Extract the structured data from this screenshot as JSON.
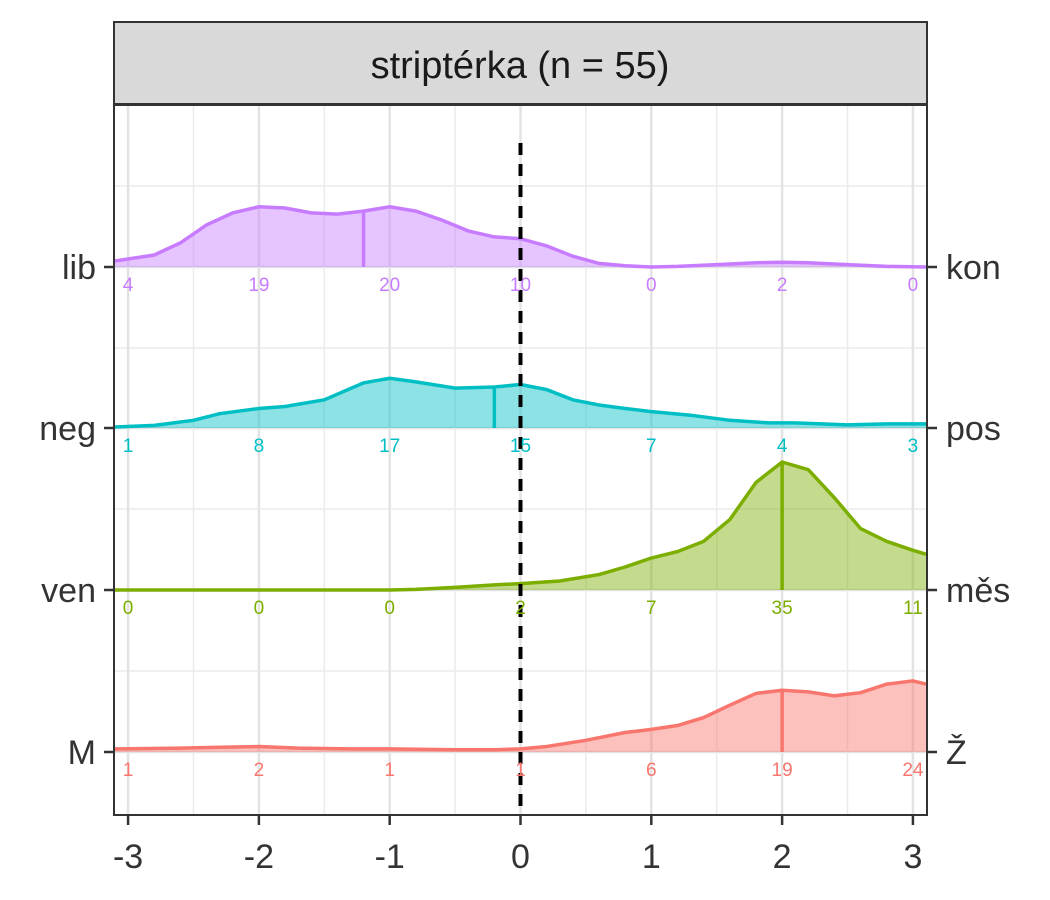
{
  "strip_title": "striptérka (n = 55)",
  "chart_data": {
    "type": "ridgeline",
    "title": "striptérka (n = 55)",
    "xlim": [
      -3.1,
      3.1
    ],
    "x_ticks": [
      -3,
      -2,
      -1,
      0,
      1,
      2,
      3
    ],
    "x_tick_labels": [
      "-3",
      "-2",
      "-1",
      "0",
      "1",
      "2",
      "3"
    ],
    "reference_line_x": 0,
    "grid": true,
    "series": [
      {
        "left_label": "lib",
        "right_label": "kon",
        "color": "#C77CFF",
        "counts": [
          4,
          19,
          20,
          10,
          0,
          2,
          0
        ],
        "median_x": -1.2,
        "density_peak_rel": 0.47,
        "density": [
          [
            -3.1,
            0.1
          ],
          [
            -2.8,
            0.2
          ],
          [
            -2.6,
            0.4
          ],
          [
            -2.4,
            0.7
          ],
          [
            -2.2,
            0.9
          ],
          [
            -2.0,
            1.0
          ],
          [
            -1.8,
            0.98
          ],
          [
            -1.6,
            0.9
          ],
          [
            -1.4,
            0.88
          ],
          [
            -1.2,
            0.93
          ],
          [
            -1.0,
            1.0
          ],
          [
            -0.8,
            0.93
          ],
          [
            -0.6,
            0.78
          ],
          [
            -0.4,
            0.6
          ],
          [
            -0.2,
            0.5
          ],
          [
            0.0,
            0.47
          ],
          [
            0.2,
            0.35
          ],
          [
            0.4,
            0.18
          ],
          [
            0.6,
            0.06
          ],
          [
            0.8,
            0.02
          ],
          [
            1.0,
            0.0
          ],
          [
            1.2,
            0.01
          ],
          [
            1.5,
            0.04
          ],
          [
            1.8,
            0.07
          ],
          [
            2.0,
            0.08
          ],
          [
            2.2,
            0.07
          ],
          [
            2.5,
            0.04
          ],
          [
            2.8,
            0.01
          ],
          [
            3.1,
            0.0
          ]
        ]
      },
      {
        "left_label": "neg",
        "right_label": "pos",
        "color": "#00BFC4",
        "counts": [
          1,
          8,
          17,
          15,
          7,
          4,
          3
        ],
        "median_x": -0.2,
        "density_peak_rel": 0.4,
        "density": [
          [
            -3.1,
            0.02
          ],
          [
            -2.8,
            0.05
          ],
          [
            -2.5,
            0.15
          ],
          [
            -2.3,
            0.28
          ],
          [
            -2.0,
            0.38
          ],
          [
            -1.8,
            0.42
          ],
          [
            -1.5,
            0.55
          ],
          [
            -1.2,
            0.88
          ],
          [
            -1.0,
            0.97
          ],
          [
            -0.8,
            0.9
          ],
          [
            -0.5,
            0.78
          ],
          [
            -0.2,
            0.8
          ],
          [
            0.0,
            0.85
          ],
          [
            0.2,
            0.75
          ],
          [
            0.4,
            0.55
          ],
          [
            0.6,
            0.45
          ],
          [
            0.8,
            0.38
          ],
          [
            1.0,
            0.32
          ],
          [
            1.3,
            0.25
          ],
          [
            1.6,
            0.15
          ],
          [
            1.9,
            0.1
          ],
          [
            2.1,
            0.1
          ],
          [
            2.3,
            0.08
          ],
          [
            2.5,
            0.06
          ],
          [
            2.8,
            0.08
          ],
          [
            3.1,
            0.08
          ]
        ]
      },
      {
        "left_label": "ven",
        "right_label": "měs",
        "color": "#7CAE00",
        "counts": [
          0,
          0,
          0,
          2,
          7,
          35,
          11
        ],
        "median_x": 2.0,
        "density_peak_rel": 1.0,
        "density": [
          [
            -3.1,
            0.0
          ],
          [
            -2.0,
            0.0
          ],
          [
            -1.0,
            0.0
          ],
          [
            -0.8,
            0.005
          ],
          [
            -0.5,
            0.02
          ],
          [
            -0.2,
            0.04
          ],
          [
            0.0,
            0.05
          ],
          [
            0.3,
            0.07
          ],
          [
            0.6,
            0.12
          ],
          [
            0.8,
            0.18
          ],
          [
            1.0,
            0.25
          ],
          [
            1.2,
            0.3
          ],
          [
            1.4,
            0.38
          ],
          [
            1.6,
            0.55
          ],
          [
            1.8,
            0.84
          ],
          [
            2.0,
            1.0
          ],
          [
            2.2,
            0.94
          ],
          [
            2.4,
            0.72
          ],
          [
            2.6,
            0.48
          ],
          [
            2.8,
            0.38
          ],
          [
            3.0,
            0.31
          ],
          [
            3.1,
            0.28
          ]
        ]
      },
      {
        "left_label": "M",
        "right_label": "Ž",
        "color": "#F8766D",
        "counts": [
          1,
          2,
          1,
          1,
          6,
          19,
          24
        ],
        "median_x": 2.0,
        "density_peak_rel": 0.61,
        "density": [
          [
            -3.1,
            0.04
          ],
          [
            -2.6,
            0.05
          ],
          [
            -2.3,
            0.06
          ],
          [
            -2.0,
            0.07
          ],
          [
            -1.7,
            0.05
          ],
          [
            -1.3,
            0.04
          ],
          [
            -1.0,
            0.04
          ],
          [
            -0.5,
            0.03
          ],
          [
            -0.2,
            0.03
          ],
          [
            0.0,
            0.04
          ],
          [
            0.2,
            0.07
          ],
          [
            0.5,
            0.15
          ],
          [
            0.8,
            0.25
          ],
          [
            1.0,
            0.29
          ],
          [
            1.2,
            0.34
          ],
          [
            1.4,
            0.44
          ],
          [
            1.6,
            0.6
          ],
          [
            1.8,
            0.75
          ],
          [
            2.0,
            0.79
          ],
          [
            2.2,
            0.77
          ],
          [
            2.4,
            0.72
          ],
          [
            2.6,
            0.76
          ],
          [
            2.8,
            0.87
          ],
          [
            3.0,
            0.91
          ],
          [
            3.1,
            0.87
          ]
        ]
      }
    ]
  }
}
